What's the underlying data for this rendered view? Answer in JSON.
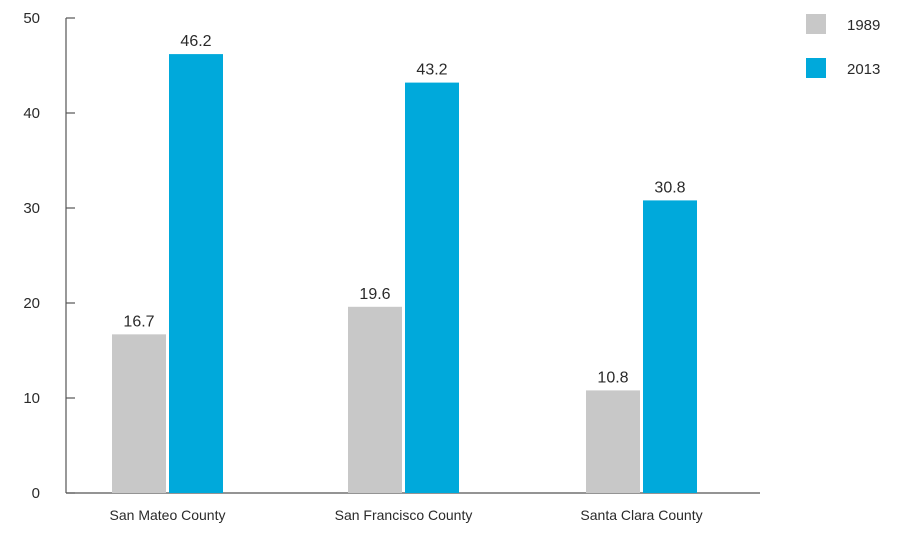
{
  "chart_data": {
    "type": "bar",
    "categories": [
      "San Mateo County",
      "San Francisco County",
      "Santa Clara County"
    ],
    "series": [
      {
        "name": "1989",
        "color": "#c8c8c8",
        "values": [
          16.7,
          19.6,
          10.8
        ]
      },
      {
        "name": "2013",
        "color": "#00a9db",
        "values": [
          46.2,
          43.2,
          30.8
        ]
      }
    ],
    "ylim": [
      0,
      50
    ],
    "yticks": [
      "0",
      "10",
      "20",
      "30",
      "40",
      "50"
    ],
    "data_labels": [
      [
        "16.7",
        "19.6",
        "10.8"
      ],
      [
        "46.2",
        "43.2",
        "30.8"
      ]
    ],
    "grid": false,
    "legend_position": "top-right"
  }
}
